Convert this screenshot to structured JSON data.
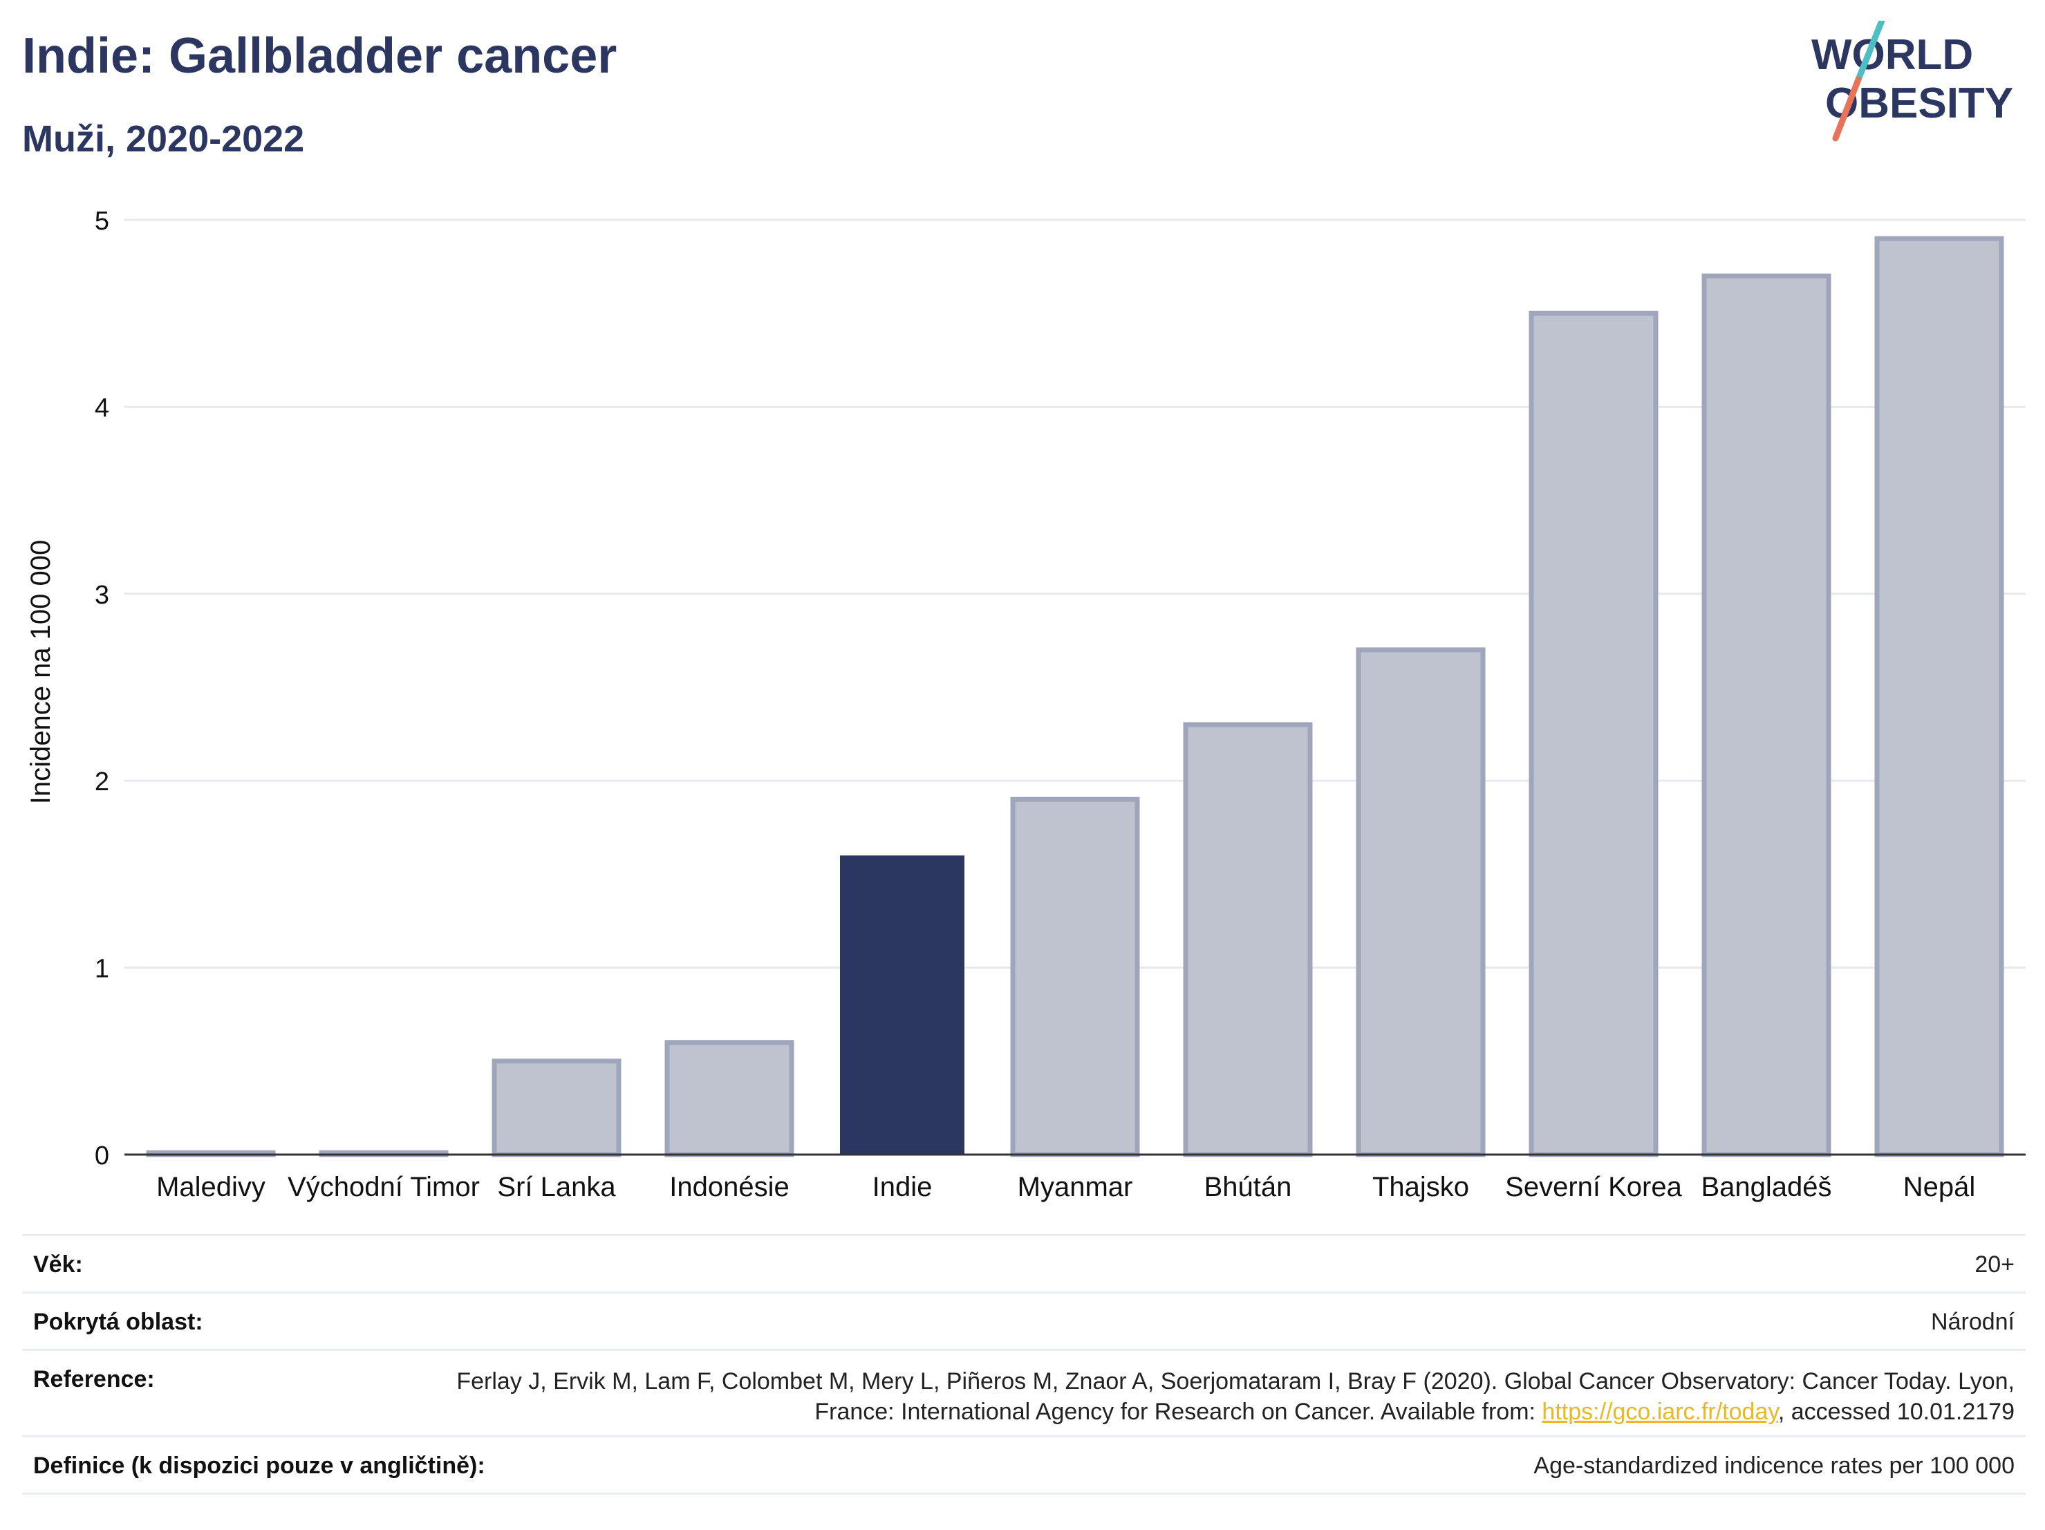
{
  "header": {
    "title": "Indie: Gallbladder cancer",
    "subtitle": "Muži, 2020-2022"
  },
  "logo": {
    "line1": "WORLD",
    "line2": "OBESITY",
    "colors": {
      "text": "#2b3661",
      "slash_top": "#4bbfc4",
      "slash_bottom": "#e8735a"
    }
  },
  "chart_data": {
    "type": "bar",
    "categories": [
      "Maledivy",
      "Východní Timor",
      "Srí Lanka",
      "Indonésie",
      "Indie",
      "Myanmar",
      "Bhútán",
      "Thajsko",
      "Severní Korea",
      "Bangladéš",
      "Nepál"
    ],
    "values": [
      0.01,
      0.01,
      0.5,
      0.6,
      1.6,
      1.9,
      2.3,
      2.7,
      4.5,
      4.7,
      4.9
    ],
    "highlight": "Indie",
    "ylabel": "Incidence na 100 000",
    "xlabel": "",
    "ylim": [
      0,
      5
    ],
    "yticks": [
      0,
      1,
      2,
      3,
      4,
      5
    ],
    "grid": true,
    "colors": {
      "highlight": "#2b3661",
      "other_fill": "#bfc3d0",
      "other_stroke": "#9fa5ba",
      "grid": "#e6eaee",
      "axis": "#333333"
    }
  },
  "info": {
    "age_label": "Věk:",
    "age_value": "20+",
    "area_label": "Pokrytá oblast:",
    "area_value": "Národní",
    "ref_label": "Reference:",
    "ref_text_before": "Ferlay J, Ervik M, Lam F, Colombet M, Mery L, Piñeros M, Znaor A, Soerjomataram I, Bray F (2020). Global Cancer Observatory: Cancer Today. Lyon, France: International Agency for Research on Cancer. Available from: ",
    "ref_link": "https://gco.iarc.fr/today",
    "ref_text_after": ", accessed 10.01.2179",
    "def_label": "Definice (k dispozici pouze v angličtině):",
    "def_value": "Age-standardized indicence rates per 100 000"
  }
}
